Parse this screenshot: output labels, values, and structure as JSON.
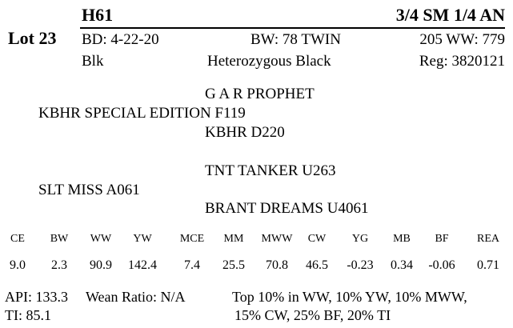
{
  "lot": "Lot 23",
  "tag": "H61",
  "breed": "3/4 SM 1/4 AN",
  "birth_date": "BD: 4-22-20",
  "birth_weight": "BW: 78  TWIN",
  "weaning_weight": "205 WW: 779",
  "color": "Blk",
  "black_status": "Heterozygous Black",
  "registration": "Reg: 3820121",
  "pedigree": {
    "sire_sire": "G A R PROPHET",
    "sire": "KBHR SPECIAL EDITION F119",
    "sire_dam": "KBHR D220",
    "dam_sire": "TNT TANKER U263",
    "dam": "SLT MISS A061",
    "dam_dam": "BRANT DREAMS U4061"
  },
  "epds": [
    {
      "label": "CE",
      "value": "9.0"
    },
    {
      "label": "BW",
      "value": "2.3"
    },
    {
      "label": "WW",
      "value": "90.9"
    },
    {
      "label": "YW",
      "value": "142.4"
    },
    {
      "label": "MCE",
      "value": "7.4"
    },
    {
      "label": "MM",
      "value": "25.5"
    },
    {
      "label": "MWW",
      "value": "70.8"
    },
    {
      "label": "CW",
      "value": "46.5"
    },
    {
      "label": "YG",
      "value": "-0.23"
    },
    {
      "label": "MB",
      "value": "0.34"
    },
    {
      "label": "BF",
      "value": "-0.06"
    },
    {
      "label": "REA",
      "value": "0.71"
    }
  ],
  "footer": {
    "api": "API: 133.3",
    "ti": "TI: 85.1",
    "wean_ratio": "Wean Ratio: N/A",
    "top_line1": "Top 10% in WW,  10% YW,  10% MWW,",
    "top_line2": "15% CW,  25% BF,  20% TI"
  }
}
